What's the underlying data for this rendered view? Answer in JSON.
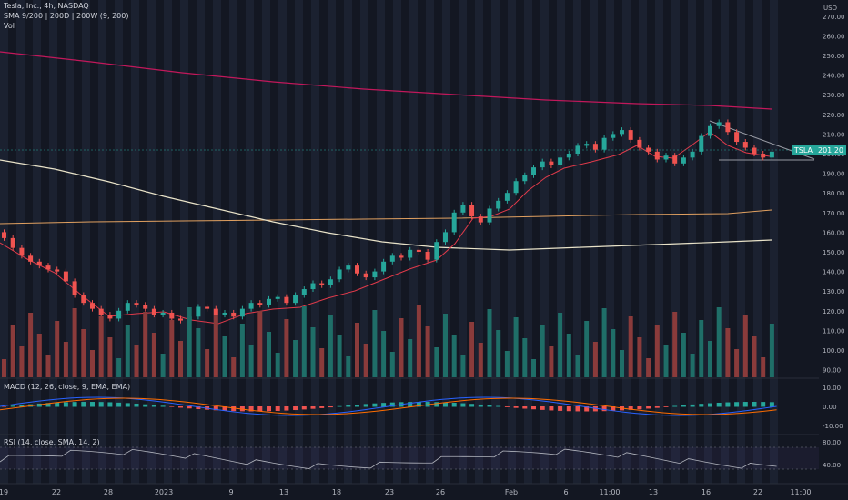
{
  "header": {
    "symbol_line": "Tesla, Inc., 4h, NASDAQ",
    "sma_line": "SMA 9/200 | 200D | 200W (9, 200)",
    "vol_line": "Vol",
    "macd_line": "MACD (12, 26, close, 9, EMA, EMA)",
    "rsi_line": "RSI (14, close, SMA, 14, 2)"
  },
  "price_axis": {
    "currency": "USD",
    "ticks": [
      "270.00",
      "260.00",
      "250.00",
      "240.00",
      "230.00",
      "220.00",
      "210.00",
      "200.00",
      "190.00",
      "180.00",
      "170.00",
      "160.00",
      "150.00",
      "140.00",
      "130.00",
      "120.00",
      "110.00",
      "100.00",
      "90.00"
    ]
  },
  "macd_axis": {
    "ticks": [
      "10.00",
      "0.00",
      "-10.00"
    ]
  },
  "rsi_axis": {
    "ticks": [
      "80.00",
      "40.00"
    ]
  },
  "ticker_label": "TSLA",
  "last_price": "201.20",
  "time_axis": [
    "19",
    "22",
    "28",
    "2023",
    "9",
    "13",
    "18",
    "23",
    "26",
    "Feb",
    "6",
    "11:00",
    "13",
    "16",
    "22",
    "11:00"
  ],
  "colors": {
    "background": "#131722",
    "up": "#26a69a",
    "down": "#ef5350",
    "sma9": "#e03a4a",
    "sma200": "#c2185b",
    "ma200d": "#e0a060",
    "ma200w": "#e8e2c8",
    "macd": "#2962ff",
    "signal": "#ff6d00",
    "rsi": "#b2b5be"
  }
}
